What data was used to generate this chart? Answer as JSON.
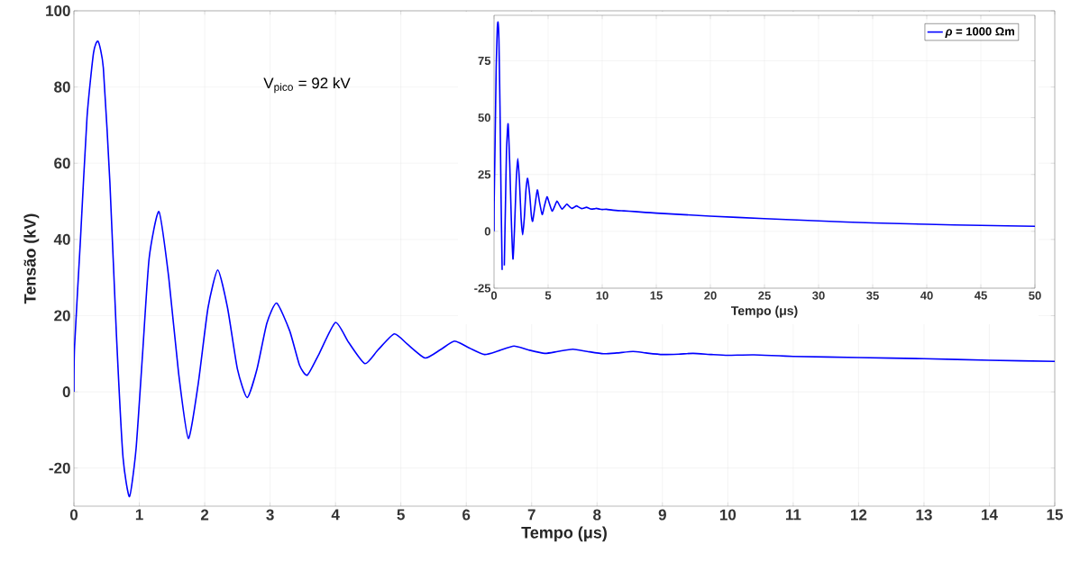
{
  "chart_data": [
    {
      "type": "line",
      "xlabel": "Tempo (μs)",
      "ylabel": "Tensão (kV)",
      "annotations": [
        "V$_{pico}$ = 92 kV"
      ],
      "x": [
        0,
        0.01,
        0.1,
        0.2,
        0.3,
        0.37,
        0.45,
        0.55,
        0.65,
        0.75,
        0.85,
        0.95,
        1.05,
        1.15,
        1.3,
        1.45,
        1.6,
        1.75,
        1.9,
        2.05,
        2.2,
        2.35,
        2.5,
        2.65,
        2.8,
        2.95,
        3.1,
        3.3,
        3.45,
        3.57,
        3.75,
        4.0,
        4.2,
        4.45,
        4.65,
        4.9,
        5.1,
        5.37,
        5.6,
        5.82,
        6.05,
        6.28,
        6.5,
        6.73,
        6.95,
        7.2,
        7.4,
        7.63,
        7.85,
        8.1,
        8.3,
        8.55,
        8.75,
        9.0,
        9.25,
        9.47,
        9.75,
        10.0,
        10.4,
        11.0,
        12.0,
        13.0,
        14.0,
        15.0
      ],
      "series": [
        {
          "color": "#0000ff",
          "values": [
            0,
            12,
            40,
            72,
            89,
            92,
            85,
            55,
            15,
            -17,
            -27.5,
            -15,
            10,
            35,
            47.3,
            30,
            5,
            -12.2,
            2,
            22,
            32,
            22,
            6,
            -1.5,
            6,
            18,
            23.3,
            16,
            7,
            4.4,
            10,
            18.2,
            13,
            7.4,
            11,
            15.2,
            12.5,
            8.9,
            11,
            13.3,
            11.5,
            9.8,
            10.8,
            12.0,
            11,
            10.1,
            10.6,
            11.2,
            10.6,
            10.0,
            10.2,
            10.6,
            10.2,
            9.8,
            9.9,
            10.1,
            9.8,
            9.6,
            9.7,
            9.3,
            9.0,
            8.7,
            8.3,
            8.0
          ]
        }
      ],
      "xlim": [
        0,
        15
      ],
      "ylim": [
        -30,
        100
      ],
      "xticks": [
        0,
        1,
        2,
        3,
        4,
        5,
        6,
        7,
        8,
        9,
        10,
        11,
        12,
        13,
        14,
        15
      ],
      "yticks": [
        -20,
        0,
        20,
        40,
        60,
        80,
        100
      ],
      "grid": true
    },
    {
      "type": "line",
      "xlabel": "Tempo (μs)",
      "x": [
        0,
        0.01,
        0.1,
        0.2,
        0.3,
        0.37,
        0.45,
        0.55,
        0.65,
        0.75,
        0.85,
        0.95,
        1.05,
        1.15,
        1.3,
        1.45,
        1.6,
        1.75,
        1.9,
        2.05,
        2.2,
        2.35,
        2.5,
        2.65,
        2.8,
        2.95,
        3.1,
        3.3,
        3.45,
        3.57,
        3.75,
        4.0,
        4.2,
        4.45,
        4.65,
        4.9,
        5.1,
        5.37,
        5.6,
        5.82,
        6.05,
        6.28,
        6.5,
        6.73,
        6.95,
        7.2,
        7.4,
        7.63,
        7.85,
        8.1,
        8.3,
        8.55,
        8.75,
        9.0,
        9.25,
        9.47,
        9.75,
        10.0,
        10.4,
        11.0,
        12.0,
        13.0,
        14.0,
        15.0,
        20,
        25,
        30,
        35,
        40,
        45,
        50
      ],
      "series": [
        {
          "name": "*ρ* = 1000 Ωm",
          "color": "#0000ff",
          "values": [
            0,
            12,
            40,
            72,
            89,
            92,
            85,
            55,
            15,
            -17,
            null,
            -15,
            10,
            35,
            47.3,
            30,
            5,
            -12.2,
            2,
            22,
            32,
            22,
            6,
            -1.5,
            6,
            18,
            23.3,
            16,
            7,
            4.4,
            10,
            18.2,
            13,
            7.4,
            11,
            15.2,
            12.5,
            8.9,
            11,
            13.3,
            11.5,
            9.8,
            10.8,
            12.0,
            11,
            10.1,
            10.6,
            11.2,
            10.6,
            10.0,
            10.2,
            10.6,
            10.2,
            9.8,
            9.9,
            10.1,
            9.8,
            9.6,
            9.7,
            9.3,
            9.0,
            8.7,
            8.3,
            8.0,
            6.7,
            5.6,
            4.6,
            3.7,
            3.1,
            2.6,
            2.2
          ]
        }
      ],
      "xlim": [
        0,
        50
      ],
      "ylim": [
        -25,
        95
      ],
      "xticks": [
        0,
        5,
        10,
        15,
        20,
        25,
        30,
        35,
        40,
        45,
        50
      ],
      "yticks": [
        -25,
        0,
        25,
        50,
        75
      ],
      "grid": true,
      "legend": "top right"
    }
  ]
}
